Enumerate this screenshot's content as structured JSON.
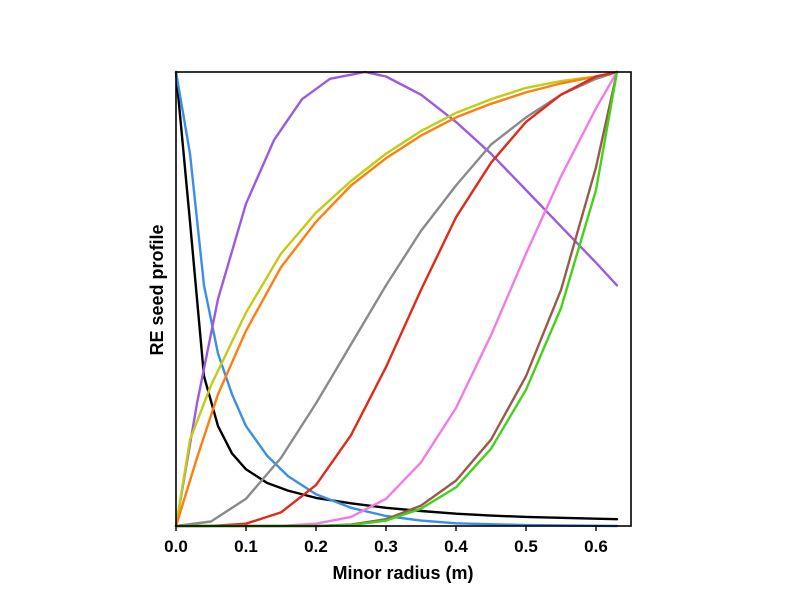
{
  "chart_data": {
    "type": "line",
    "title": "",
    "xlabel": "Minor radius (m)",
    "ylabel": "RE seed profile",
    "xlim": [
      0.0,
      0.65
    ],
    "ylim": [
      0.0,
      1.0
    ],
    "x_ticks": [
      "0.0",
      "0.1",
      "0.2",
      "0.3",
      "0.4",
      "0.5",
      "0.6"
    ],
    "y_ticks": [],
    "grid": false,
    "legend": "none",
    "series": [
      {
        "color": "#000000",
        "points": [
          [
            0.0,
            1.0
          ],
          [
            0.02,
            0.67
          ],
          [
            0.04,
            0.33
          ],
          [
            0.06,
            0.22
          ],
          [
            0.08,
            0.16
          ],
          [
            0.1,
            0.125
          ],
          [
            0.13,
            0.095
          ],
          [
            0.16,
            0.078
          ],
          [
            0.2,
            0.062
          ],
          [
            0.25,
            0.05
          ],
          [
            0.3,
            0.04
          ],
          [
            0.35,
            0.033
          ],
          [
            0.4,
            0.027
          ],
          [
            0.45,
            0.023
          ],
          [
            0.5,
            0.02
          ],
          [
            0.55,
            0.018
          ],
          [
            0.6,
            0.016
          ],
          [
            0.63,
            0.015
          ]
        ]
      },
      {
        "color": "#3b8ee6",
        "points": [
          [
            0.0,
            1.0
          ],
          [
            0.02,
            0.82
          ],
          [
            0.04,
            0.53
          ],
          [
            0.06,
            0.38
          ],
          [
            0.08,
            0.29
          ],
          [
            0.1,
            0.22
          ],
          [
            0.13,
            0.155
          ],
          [
            0.16,
            0.11
          ],
          [
            0.2,
            0.07
          ],
          [
            0.25,
            0.04
          ],
          [
            0.3,
            0.022
          ],
          [
            0.35,
            0.012
          ],
          [
            0.4,
            0.006
          ],
          [
            0.5,
            0.002
          ],
          [
            0.63,
            0.0
          ]
        ]
      },
      {
        "color": "#9a5be0",
        "points": [
          [
            0.0,
            0.0
          ],
          [
            0.03,
            0.27
          ],
          [
            0.06,
            0.5
          ],
          [
            0.1,
            0.71
          ],
          [
            0.14,
            0.85
          ],
          [
            0.18,
            0.94
          ],
          [
            0.22,
            0.985
          ],
          [
            0.27,
            1.0
          ],
          [
            0.3,
            0.99
          ],
          [
            0.35,
            0.95
          ],
          [
            0.4,
            0.89
          ],
          [
            0.45,
            0.82
          ],
          [
            0.5,
            0.74
          ],
          [
            0.55,
            0.66
          ],
          [
            0.6,
            0.58
          ],
          [
            0.63,
            0.53
          ]
        ]
      },
      {
        "color": "#c3cc15",
        "points": [
          [
            0.0,
            0.0
          ],
          [
            0.02,
            0.19
          ],
          [
            0.05,
            0.31
          ],
          [
            0.1,
            0.47
          ],
          [
            0.15,
            0.6
          ],
          [
            0.2,
            0.69
          ],
          [
            0.25,
            0.76
          ],
          [
            0.3,
            0.82
          ],
          [
            0.35,
            0.87
          ],
          [
            0.4,
            0.91
          ],
          [
            0.45,
            0.94
          ],
          [
            0.5,
            0.965
          ],
          [
            0.55,
            0.98
          ],
          [
            0.6,
            0.99
          ],
          [
            0.63,
            1.0
          ]
        ]
      },
      {
        "color": "#ff7f0e",
        "points": [
          [
            0.0,
            0.0
          ],
          [
            0.03,
            0.15
          ],
          [
            0.06,
            0.29
          ],
          [
            0.1,
            0.43
          ],
          [
            0.15,
            0.57
          ],
          [
            0.2,
            0.67
          ],
          [
            0.25,
            0.75
          ],
          [
            0.3,
            0.81
          ],
          [
            0.35,
            0.86
          ],
          [
            0.4,
            0.9
          ],
          [
            0.45,
            0.93
          ],
          [
            0.5,
            0.955
          ],
          [
            0.55,
            0.975
          ],
          [
            0.6,
            0.99
          ],
          [
            0.63,
            1.0
          ]
        ]
      },
      {
        "color": "#8a8a8a",
        "points": [
          [
            0.0,
            0.0
          ],
          [
            0.05,
            0.01
          ],
          [
            0.1,
            0.06
          ],
          [
            0.15,
            0.15
          ],
          [
            0.2,
            0.27
          ],
          [
            0.25,
            0.4
          ],
          [
            0.3,
            0.53
          ],
          [
            0.35,
            0.65
          ],
          [
            0.4,
            0.75
          ],
          [
            0.45,
            0.84
          ],
          [
            0.5,
            0.9
          ],
          [
            0.55,
            0.95
          ],
          [
            0.6,
            0.985
          ],
          [
            0.63,
            1.0
          ]
        ]
      },
      {
        "color": "#e02a1a",
        "points": [
          [
            0.0,
            0.0
          ],
          [
            0.05,
            0.0
          ],
          [
            0.1,
            0.005
          ],
          [
            0.15,
            0.03
          ],
          [
            0.2,
            0.09
          ],
          [
            0.25,
            0.2
          ],
          [
            0.3,
            0.35
          ],
          [
            0.35,
            0.52
          ],
          [
            0.4,
            0.68
          ],
          [
            0.45,
            0.8
          ],
          [
            0.5,
            0.89
          ],
          [
            0.55,
            0.95
          ],
          [
            0.6,
            0.99
          ],
          [
            0.63,
            1.0
          ]
        ]
      },
      {
        "color": "#f07ce6",
        "points": [
          [
            0.0,
            0.0
          ],
          [
            0.15,
            0.0
          ],
          [
            0.2,
            0.005
          ],
          [
            0.25,
            0.02
          ],
          [
            0.3,
            0.06
          ],
          [
            0.35,
            0.14
          ],
          [
            0.4,
            0.26
          ],
          [
            0.45,
            0.42
          ],
          [
            0.5,
            0.6
          ],
          [
            0.55,
            0.77
          ],
          [
            0.6,
            0.92
          ],
          [
            0.63,
            1.0
          ]
        ]
      },
      {
        "color": "#9a5a4a",
        "points": [
          [
            0.0,
            0.0
          ],
          [
            0.2,
            0.0
          ],
          [
            0.25,
            0.003
          ],
          [
            0.3,
            0.015
          ],
          [
            0.35,
            0.045
          ],
          [
            0.4,
            0.1
          ],
          [
            0.45,
            0.19
          ],
          [
            0.5,
            0.33
          ],
          [
            0.55,
            0.52
          ],
          [
            0.6,
            0.79
          ],
          [
            0.63,
            1.0
          ]
        ]
      },
      {
        "color": "#44d21a",
        "points": [
          [
            0.0,
            0.0
          ],
          [
            0.2,
            0.0
          ],
          [
            0.25,
            0.002
          ],
          [
            0.3,
            0.012
          ],
          [
            0.35,
            0.038
          ],
          [
            0.4,
            0.085
          ],
          [
            0.45,
            0.17
          ],
          [
            0.5,
            0.3
          ],
          [
            0.55,
            0.48
          ],
          [
            0.6,
            0.74
          ],
          [
            0.63,
            1.0
          ]
        ]
      }
    ]
  }
}
